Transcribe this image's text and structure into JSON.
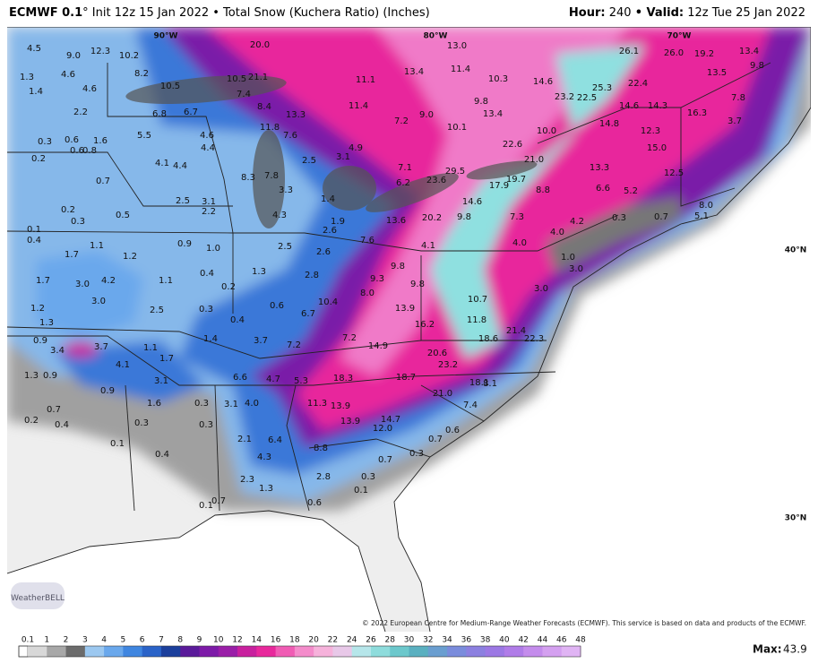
{
  "header": {
    "model": "ECMWF 0.1",
    "title": "° Init 12z 15 Jan 2022 • Total Snow (Kuchera Ratio) (Inches)",
    "hour_label": "Hour:",
    "hour": "240",
    "valid_label": "• Valid:",
    "valid": "12z Tue 25 Jan 2022"
  },
  "map": {
    "grid_labels": [
      "90°W",
      "80°W",
      "70°W",
      "40°N",
      "30°N"
    ],
    "labels": [
      "4.5",
      "12.3",
      "10.2",
      "20.0",
      "13.0",
      "26.1",
      "26.0",
      "19.2",
      "13.4",
      "9.0",
      "9.8",
      "1.3",
      "4.6",
      "8.2",
      "10.5",
      "21.1",
      "10.5",
      "13.4",
      "11.4",
      "10.3",
      "14.6",
      "13.5",
      "1.4",
      "4.6",
      "11.1",
      "25.3",
      "22.4",
      "23.2",
      "22.5",
      "7.4",
      "9.8",
      "11.4",
      "8.4",
      "14.6",
      "14.3",
      "16.3",
      "7.8",
      "2.2",
      "6.8",
      "6.7",
      "13.3",
      "9.0",
      "13.4",
      "3.7",
      "14.8",
      "12.3",
      "10.1",
      "7.2",
      "0.3",
      "0.6",
      "1.6",
      "5.5",
      "4.6",
      "11.8",
      "7.6",
      "10.0",
      "4.4",
      "4.9",
      "22.6",
      "15.0",
      "0.2",
      "0.6",
      "0.8",
      "4.1",
      "4.4",
      "2.5",
      "3.1",
      "21.0",
      "13.3",
      "12.5",
      "7.1",
      "0.7",
      "8.3",
      "7.8",
      "3.3",
      "29.5",
      "23.6",
      "6.2",
      "17.9",
      "19.7",
      "8.8",
      "6.6",
      "5.2",
      "2.5",
      "3.1",
      "2.2",
      "1.4",
      "14.6",
      "0.2",
      "0.5",
      "4.3",
      "13.6",
      "20.2",
      "9.8",
      "7.3",
      "4.2",
      "0.3",
      "0.7",
      "8.0",
      "5.1",
      "0.3",
      "2.6",
      "1.9",
      "0.1",
      "0.4",
      "1.1",
      "0.9",
      "1.0",
      "2.5",
      "7.6",
      "4.1",
      "4.0",
      "4.0",
      "1.7",
      "1.2",
      "2.6",
      "1.0",
      "3.0",
      "9.8",
      "1.7",
      "3.0",
      "4.2",
      "0.4",
      "1.3",
      "2.8",
      "9.8",
      "9.3",
      "8.0",
      "3.0",
      "3.0",
      "1.1",
      "0.2",
      "10.4",
      "10.7",
      "1.2",
      "2.5",
      "0.3",
      "0.6",
      "6.7",
      "13.9",
      "0.4",
      "16.2",
      "11.8",
      "1.3",
      "21.4",
      "22.3",
      "0.9",
      "1.4",
      "3.7",
      "7.2",
      "7.2",
      "14.9",
      "18.6",
      "3.4",
      "3.7",
      "1.1",
      "1.7",
      "20.6",
      "4.1",
      "23.2",
      "1.3",
      "0.9",
      "6.6",
      "4.7",
      "5.3",
      "18.3",
      "18.7",
      "3.1",
      "0.9",
      "18.1",
      "8.1",
      "21.0",
      "1.6",
      "0.3",
      "3.1",
      "4.0",
      "11.3",
      "13.9",
      "7.4",
      "0.7",
      "0.2",
      "0.4",
      "0.3",
      "0.3",
      "13.9",
      "14.7",
      "12.0",
      "0.6",
      "0.7",
      "2.1",
      "6.4",
      "8.8",
      "0.1",
      "0.4",
      "4.3",
      "0.7",
      "0.3",
      "2.8",
      "0.3",
      "2.3",
      "1.3",
      "0.1",
      "0.7",
      "0.1",
      "0.6"
    ],
    "logo": "WeatherBELL",
    "credit": "© 2022 European Centre for Medium-Range Weather Forecasts (ECMWF). This service is based on data and products of the ECMWF."
  },
  "colorbar": {
    "labels": [
      "0.1",
      "1",
      "2",
      "3",
      "4",
      "5",
      "6",
      "7",
      "8",
      "9",
      "10",
      "12",
      "14",
      "16",
      "18",
      "20",
      "22",
      "24",
      "26",
      "28",
      "30",
      "32",
      "34",
      "36",
      "38",
      "40",
      "42",
      "44",
      "46",
      "48"
    ],
    "colors": [
      "#d8d8d8",
      "#a8a8a8",
      "#6c6c6c",
      "#9cc8f0",
      "#6aa8ec",
      "#3f86e0",
      "#2a63c8",
      "#1b3f9c",
      "#5a1a9a",
      "#7d1aa8",
      "#9a1ea8",
      "#c8209e",
      "#e8289c",
      "#f05cb4",
      "#f48ccb",
      "#f6b2db",
      "#e8c8e8",
      "#b6e6ea",
      "#8edcdc",
      "#6cc8cc",
      "#5ab0c0",
      "#6a9ed0",
      "#7a8cdc",
      "#8c80e0",
      "#9c78e4",
      "#b07ce8",
      "#c48cec",
      "#d4a0f0",
      "#e0b4f4"
    ],
    "max_label": "Max:",
    "max": "43.9"
  }
}
